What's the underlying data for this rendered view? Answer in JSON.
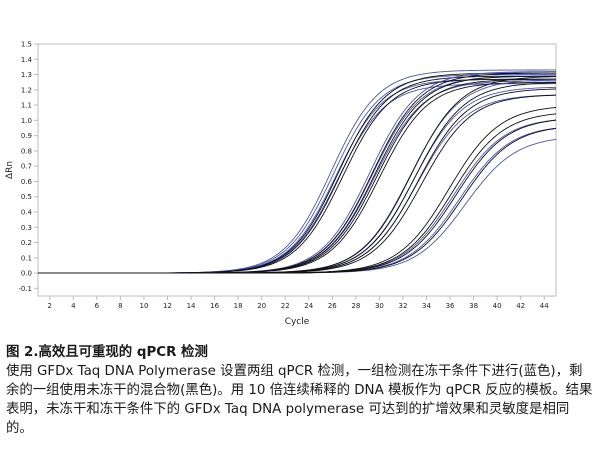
{
  "chart_data": {
    "type": "line",
    "xlabel": "Cycle",
    "ylabel": "ΔRn",
    "xlim": [
      1,
      45
    ],
    "ylim": [
      -0.15,
      1.5
    ],
    "x_ticks": [
      2,
      4,
      6,
      8,
      10,
      12,
      14,
      16,
      18,
      20,
      22,
      24,
      26,
      28,
      30,
      32,
      34,
      36,
      38,
      40,
      42,
      44
    ],
    "y_ticks": [
      -0.1,
      0.0,
      0.1,
      0.2,
      0.3,
      0.4,
      0.5,
      0.6,
      0.7,
      0.8,
      0.9,
      1.0,
      1.1,
      1.2,
      1.3,
      1.4,
      1.5
    ],
    "x_tick_labels": [
      "2",
      "4",
      "6",
      "8",
      "10",
      "12",
      "14",
      "16",
      "18",
      "20",
      "22",
      "24",
      "26",
      "28",
      "30",
      "32",
      "34",
      "36",
      "38",
      "40",
      "42",
      "44"
    ],
    "y_tick_labels": [
      "-0.1",
      "0.0",
      "0.1",
      "0.2",
      "0.3",
      "0.4",
      "0.5",
      "0.6",
      "0.7",
      "0.8",
      "0.9",
      "1.0",
      "1.1",
      "1.2",
      "1.3",
      "1.4",
      "1.5"
    ],
    "grid": false,
    "colors": {
      "lyophilized": "#4a56b0",
      "non_lyophilized": "#111111",
      "axis": "#bdbdbd"
    },
    "groups": [
      {
        "condition": "lyophilized",
        "dilution": 1,
        "midpoints": [
          25.9,
          26.1,
          26.3,
          26.5
        ],
        "plateaus": [
          1.33,
          1.3,
          1.27,
          1.24
        ],
        "slope": 2.0
      },
      {
        "condition": "non_lyophilized",
        "dilution": 1,
        "midpoints": [
          26.5,
          26.7,
          26.9
        ],
        "plateaus": [
          1.31,
          1.29,
          1.27
        ],
        "slope": 2.0
      },
      {
        "condition": "lyophilized",
        "dilution": 2,
        "midpoints": [
          29.2,
          29.4,
          29.6
        ],
        "plateaus": [
          1.32,
          1.29,
          1.26
        ],
        "slope": 2.05
      },
      {
        "condition": "non_lyophilized",
        "dilution": 2,
        "midpoints": [
          29.4,
          29.6,
          29.8,
          30.0
        ],
        "plateaus": [
          1.31,
          1.29,
          1.27,
          1.25
        ],
        "slope": 2.05
      },
      {
        "condition": "lyophilized",
        "dilution": 3,
        "midpoints": [
          32.6,
          32.9,
          33.2
        ],
        "plateaus": [
          1.27,
          1.22,
          1.17
        ],
        "slope": 2.1
      },
      {
        "condition": "non_lyophilized",
        "dilution": 3,
        "midpoints": [
          32.7,
          33.0,
          33.3,
          33.6
        ],
        "plateaus": [
          1.29,
          1.25,
          1.21,
          1.17
        ],
        "slope": 2.1
      },
      {
        "condition": "lyophilized",
        "dilution": 4,
        "midpoints": [
          36.3,
          36.8,
          37.3
        ],
        "plateaus": [
          1.02,
          0.97,
          0.9
        ],
        "slope": 2.15
      },
      {
        "condition": "non_lyophilized",
        "dilution": 4,
        "midpoints": [
          35.9,
          36.2,
          36.5,
          37.0
        ],
        "plateaus": [
          1.1,
          1.06,
          1.02,
          0.97
        ],
        "slope": 2.15
      }
    ]
  },
  "caption": {
    "title": "图 2.高效且可重现的 qPCR 检测",
    "body": "使用 GFDx Taq DNA Polymerase 设置两组 qPCR 检测，一组检测在冻干条件下进行(蓝色)，剩余的一组使用未冻干的混合物(黑色)。用 10 倍连续稀释的 DNA 模板作为 qPCR 反应的模板。结果表明，未冻干和冻干条件下的 GFDx Taq DNA polymerase 可达到的扩增效果和灵敏度是相同的。"
  }
}
